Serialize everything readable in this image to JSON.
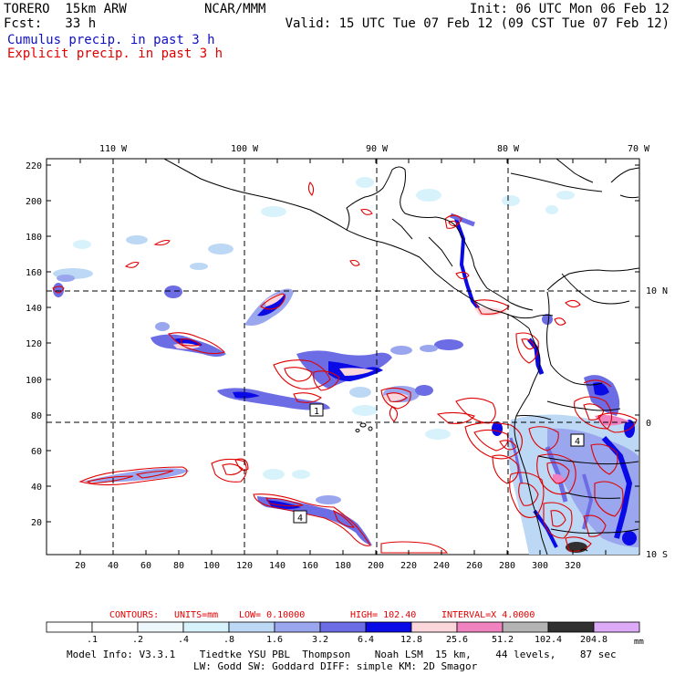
{
  "header": {
    "model": "TORERO  15km ARW",
    "org": "NCAR/MMM",
    "init": "Init: 06 UTC Mon 06 Feb 12",
    "fcst": "Fcst:   33 h",
    "valid": "Valid: 15 UTC Tue 07 Feb 12 (09 CST Tue 07 Feb 12)",
    "cumulus": "Cumulus precip. in past 3 h",
    "explicit": "Explicit precip. in past 3 h"
  },
  "map": {
    "lon_labels": [
      "110 W",
      "100 W",
      "90 W",
      "80 W",
      "70 W"
    ],
    "lat_labels": [
      "10 N",
      "0",
      "10 S"
    ],
    "y_ticks": [
      "220",
      "200",
      "180",
      "160",
      "140",
      "120",
      "100",
      "80",
      "60",
      "40",
      "20"
    ],
    "x_ticks": [
      "20",
      "40",
      "60",
      "80",
      "100",
      "120",
      "140",
      "160",
      "180",
      "200",
      "220",
      "240",
      "260",
      "280",
      "300",
      "320"
    ],
    "contour_boxes": [
      "1",
      "4",
      "4"
    ]
  },
  "contours_info": {
    "label": "CONTOURS:",
    "units": "UNITS=mm",
    "low": "LOW= 0.10000",
    "high": "HIGH=  102.40",
    "interval": "INTERVAL=X  4.0000"
  },
  "colorbar": {
    "labels": [
      ".1",
      ".2",
      ".4",
      ".8",
      "1.6",
      "3.2",
      "6.4",
      "12.8",
      "25.6",
      "51.2",
      "102.4",
      "204.8"
    ],
    "unit": "mm",
    "colors": [
      "#ffffff",
      "#ffffff",
      "#eef8fc",
      "#d8f2fb",
      "#bcd8f5",
      "#9aa6ee",
      "#6c6ce4",
      "#0a0ae6",
      "#fbd6da",
      "#f082c0",
      "#b4b4b4",
      "#303030",
      "#dcaaf6"
    ]
  },
  "footer": {
    "line1": "Model Info: V3.3.1    Tiedtke YSU PBL  Thompson    Noah LSM  15 km,    44 levels,    87 sec",
    "line2": "LW: Godd SW: Goddard DIFF: simple KM: 2D Smagor"
  }
}
